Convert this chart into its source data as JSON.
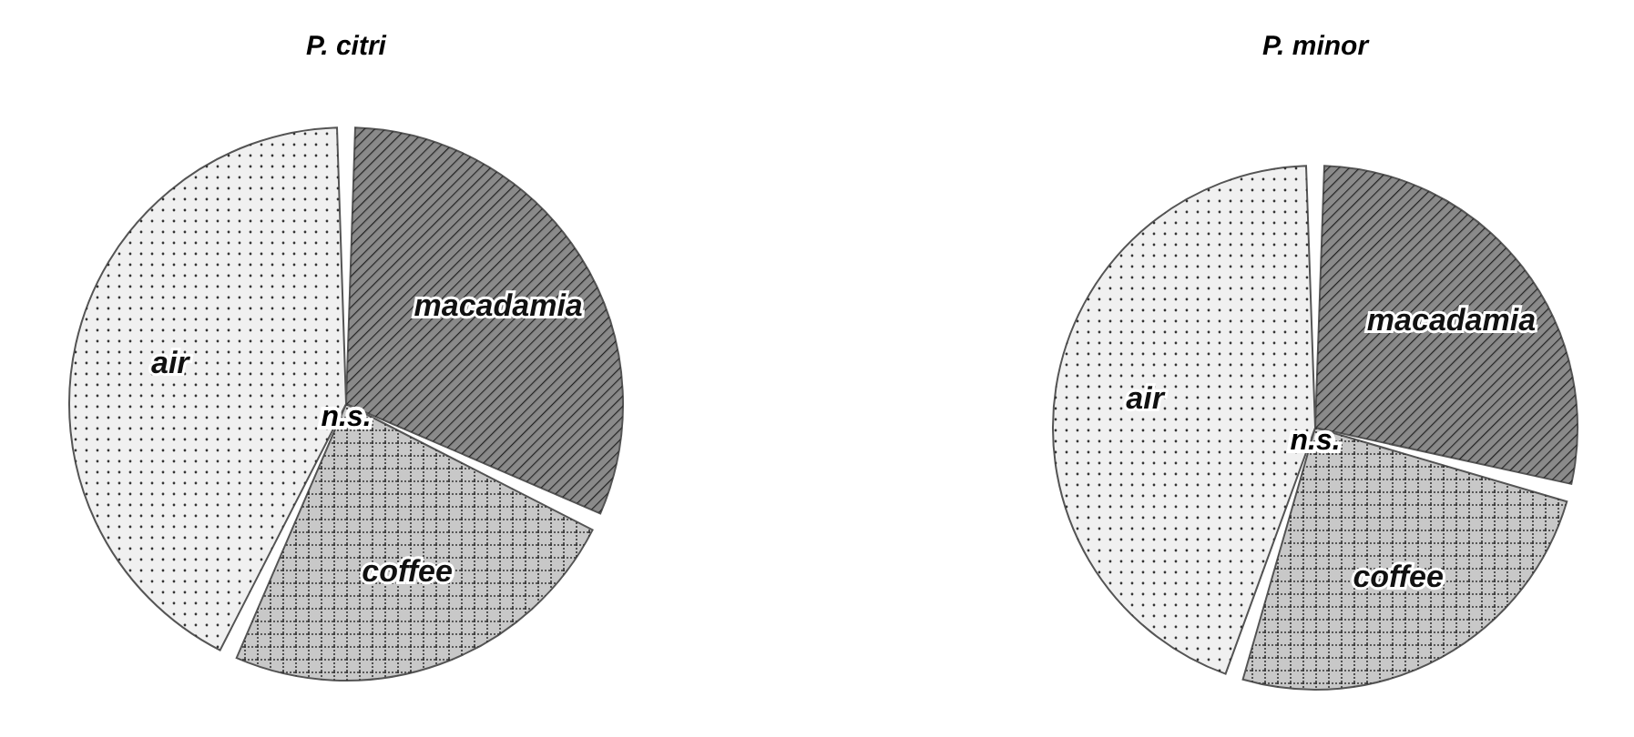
{
  "chart_data": [
    {
      "type": "pie",
      "title": "P. citri",
      "categories": [
        "macadamia",
        "coffee",
        "air"
      ],
      "values": [
        32,
        25,
        43
      ],
      "colors": [
        "#8a8a8a",
        "#c8c8c8",
        "#f0f0f0"
      ],
      "annotations": [
        "n.s."
      ]
    },
    {
      "type": "pie",
      "title": "P. minor",
      "categories": [
        "macadamia",
        "coffee",
        "air"
      ],
      "values": [
        29,
        26,
        45
      ],
      "colors": [
        "#8a8a8a",
        "#c8c8c8",
        "#f0f0f0"
      ],
      "annotations": [
        "n.s."
      ]
    }
  ]
}
